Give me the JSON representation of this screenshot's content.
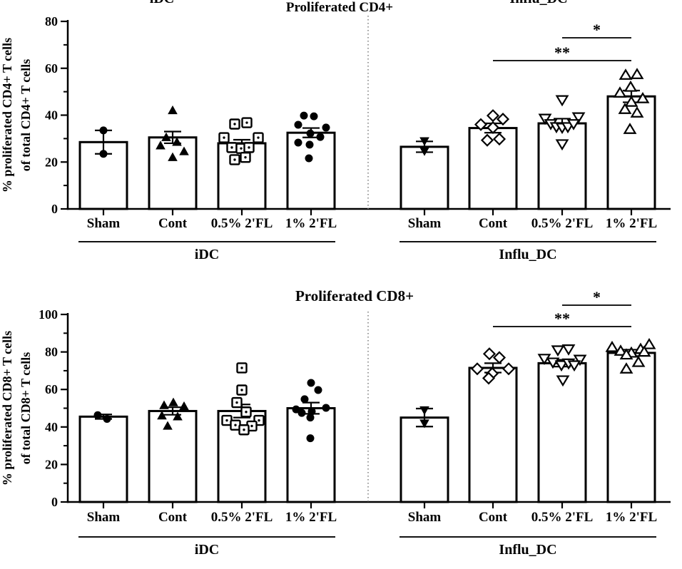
{
  "figure": {
    "background": "#ffffff",
    "ink": "#000000",
    "separator_color": "#7a7a7a",
    "significance_color": "#1c1c1c",
    "top_cropped_labels": [
      {
        "text": "iDC"
      },
      {
        "text": "Influ_DC"
      }
    ]
  },
  "chart_data": [
    {
      "type": "bar",
      "title": "Proliferated CD4+",
      "ylabel_lines": [
        "% proliferated CD4+ T cells",
        "of total CD4+ T cells"
      ],
      "ylim": [
        0,
        80
      ],
      "yticks": [
        0,
        20,
        40,
        60,
        80
      ],
      "minor_tick_every": 10,
      "grid": false,
      "categories": [
        "Sham",
        "Cont",
        "0.5% 2'FL",
        "1% 2'FL"
      ],
      "groups": [
        {
          "label": "iDC",
          "bars": [
            {
              "category": "Sham",
              "marker": "filled-circle",
              "mean": 28.5,
              "sem": 5,
              "points": [
                [
                  0,
                  33.5
                ],
                [
                  0,
                  23.5
                ]
              ]
            },
            {
              "category": "Cont",
              "marker": "filled-triangle-up",
              "mean": 30.5,
              "sem": 2.5,
              "points": [
                [
                  0,
                  42
                ],
                [
                  -9,
                  30.5
                ],
                [
                  6,
                  28.5
                ],
                [
                  -17,
                  27
                ],
                [
                  16,
                  24.5
                ],
                [
                  0,
                  22
                ]
              ]
            },
            {
              "category": "0.5% 2'FL",
              "marker": "open-square-dot",
              "mean": 28,
              "sem": 1.5,
              "points": [
                [
                  -10,
                  36.2
                ],
                [
                  7,
                  36.8
                ],
                [
                  -25,
                  30.4
                ],
                [
                  23,
                  30.4
                ],
                [
                  -14,
                  26.2
                ],
                [
                  -1,
                  25.8
                ],
                [
                  10,
                  26.2
                ],
                [
                  -10,
                  21
                ],
                [
                  5,
                  22
                ]
              ]
            },
            {
              "category": "1% 2'FL",
              "marker": "filled-circle",
              "mean": 32.5,
              "sem": 2,
              "points": [
                [
                  -10,
                  39.8
                ],
                [
                  4,
                  39.5
                ],
                [
                  -18,
                  35.9
                ],
                [
                  21,
                  34.7
                ],
                [
                  -1,
                  32.2
                ],
                [
                  13,
                  30.7
                ],
                [
                  -18,
                  28.3
                ],
                [
                  -2,
                  27.4
                ],
                [
                  -3,
                  21.6
                ]
              ]
            }
          ]
        },
        {
          "label": "Influ_DC",
          "bars": [
            {
              "category": "Sham",
              "marker": "filled-triangle-down",
              "mean": 26.5,
              "sem": 2.3,
              "points": [
                [
                  0,
                  29
                ],
                [
                  0,
                  24.7
                ]
              ]
            },
            {
              "category": "Cont",
              "marker": "open-diamond",
              "mean": 34.5,
              "sem": 2,
              "points": [
                [
                  0,
                  39.8
                ],
                [
                  14,
                  38.3
                ],
                [
                  -17,
                  36
                ],
                [
                  0,
                  34.7
                ],
                [
                  -8,
                  29.3
                ],
                [
                  9,
                  29.8
                ]
              ]
            },
            {
              "category": "0.5% 2'FL",
              "marker": "open-triangle-down",
              "mean": 36.5,
              "sem": 2,
              "points": [
                [
                  0,
                  46.5
                ],
                [
                  -24,
                  38.6
                ],
                [
                  23,
                  39.2
                ],
                [
                  -16,
                  36.3
                ],
                [
                  -8,
                  35
                ],
                [
                  0,
                  34.7
                ],
                [
                  8,
                  35
                ],
                [
                  16,
                  36.3
                ],
                [
                  0,
                  27.7
                ]
              ]
            },
            {
              "category": "1% 2'FL",
              "marker": "open-triangle-up",
              "mean": 48,
              "sem": 2.5,
              "points": [
                [
                  -8,
                  57.1
                ],
                [
                  8,
                  57.4
                ],
                [
                  -1,
                  52
                ],
                [
                  -16,
                  49.5
                ],
                [
                  16,
                  47.1
                ],
                [
                  0,
                  45.6
                ],
                [
                  -9,
                  42.5
                ],
                [
                  8,
                  41
                ],
                [
                  -2,
                  34
                ]
              ]
            }
          ]
        }
      ],
      "significance": [
        {
          "label": "*",
          "group": "Influ_DC",
          "from": "0.5% 2'FL",
          "to": "1% 2'FL"
        },
        {
          "label": "**",
          "group": "Influ_DC",
          "from": "Cont",
          "to": "1% 2'FL"
        }
      ]
    },
    {
      "type": "bar",
      "title": "Proliferated CD8+",
      "ylabel_lines": [
        "% proliferated CD8+ T cells",
        "of total CD8+ T cells"
      ],
      "ylim": [
        0,
        100
      ],
      "yticks": [
        0,
        20,
        40,
        60,
        80,
        100
      ],
      "minor_tick_every": 10,
      "grid": false,
      "categories": [
        "Sham",
        "Cont",
        "0.5% 2'FL",
        "1% 2'FL"
      ],
      "groups": [
        {
          "label": "iDC",
          "bars": [
            {
              "category": "Sham",
              "marker": "filled-circle",
              "mean": 45.5,
              "sem": 1.2,
              "points": [
                [
                  -8,
                  46.3
                ],
                [
                  5,
                  44.3
                ]
              ]
            },
            {
              "category": "Cont",
              "marker": "filled-triangle-up",
              "mean": 48.5,
              "sem": 2,
              "points": [
                [
                  1,
                  53
                ],
                [
                  -12,
                  51.5
                ],
                [
                  16,
                  51
                ],
                [
                  -15,
                  46
                ],
                [
                  7,
                  45.5
                ],
                [
                  -7,
                  40.5
                ]
              ]
            },
            {
              "category": "0.5% 2'FL",
              "marker": "open-square-dot",
              "mean": 48.5,
              "sem": 3.5,
              "points": [
                [
                  0,
                  71.5
                ],
                [
                  0,
                  59.7
                ],
                [
                  -7,
                  53
                ],
                [
                  6,
                  48
                ],
                [
                  -21,
                  43.5
                ],
                [
                  24,
                  43.5
                ],
                [
                  -9,
                  41
                ],
                [
                  14,
                  40.5
                ],
                [
                  3,
                  38.5
                ]
              ]
            },
            {
              "category": "1% 2'FL",
              "marker": "filled-circle",
              "mean": 50,
              "sem": 3,
              "points": [
                [
                  0,
                  63.5
                ],
                [
                  10,
                  59.7
                ],
                [
                  -9,
                  54.8
                ],
                [
                  21,
                  50.2
                ],
                [
                  -21,
                  49.4
                ],
                [
                  1,
                  48.3
                ],
                [
                  -13,
                  47.5
                ],
                [
                  -1,
                  45
                ],
                [
                  -1,
                  34
                ]
              ]
            }
          ]
        },
        {
          "label": "Influ_DC",
          "bars": [
            {
              "category": "Sham",
              "marker": "filled-triangle-down",
              "mean": 45,
              "sem": 4.8,
              "points": [
                [
                  0,
                  49
                ],
                [
                  0,
                  42
                ]
              ]
            },
            {
              "category": "Cont",
              "marker": "open-diamond",
              "mean": 71.5,
              "sem": 2.5,
              "points": [
                [
                  -5,
                  79
                ],
                [
                  9,
                  77
                ],
                [
                  -22,
                  71
                ],
                [
                  22,
                  71
                ],
                [
                  -1,
                  68.5
                ],
                [
                  -6,
                  66
                ]
              ]
            },
            {
              "category": "0.5% 2'FL",
              "marker": "open-triangle-down",
              "mean": 74,
              "sem": 1.8,
              "points": [
                [
                  -6,
                  81
                ],
                [
                  9,
                  81.5
                ],
                [
                  -25,
                  76.5
                ],
                [
                  25,
                  76
                ],
                [
                  -13,
                  74.5
                ],
                [
                  -1,
                  73
                ],
                [
                  9,
                  74
                ],
                [
                  17,
                  73
                ],
                [
                  1,
                  65
                ]
              ]
            },
            {
              "category": "1% 2'FL",
              "marker": "open-triangle-up",
              "mean": 79.5,
              "sem": 1.7,
              "points": [
                [
                  -27,
                  82.5
                ],
                [
                  -15,
                  80.5
                ],
                [
                  0,
                  79.5
                ],
                [
                  13,
                  81.5
                ],
                [
                  25,
                  84
                ],
                [
                  -7,
                  78.5
                ],
                [
                  18,
                  80
                ],
                [
                  10,
                  74.5
                ],
                [
                  -7,
                  71
                ]
              ]
            }
          ]
        }
      ],
      "significance": [
        {
          "label": "*",
          "group": "Influ_DC",
          "from": "0.5% 2'FL",
          "to": "1% 2'FL"
        },
        {
          "label": "**",
          "group": "Influ_DC",
          "from": "Cont",
          "to": "1% 2'FL"
        }
      ]
    }
  ]
}
